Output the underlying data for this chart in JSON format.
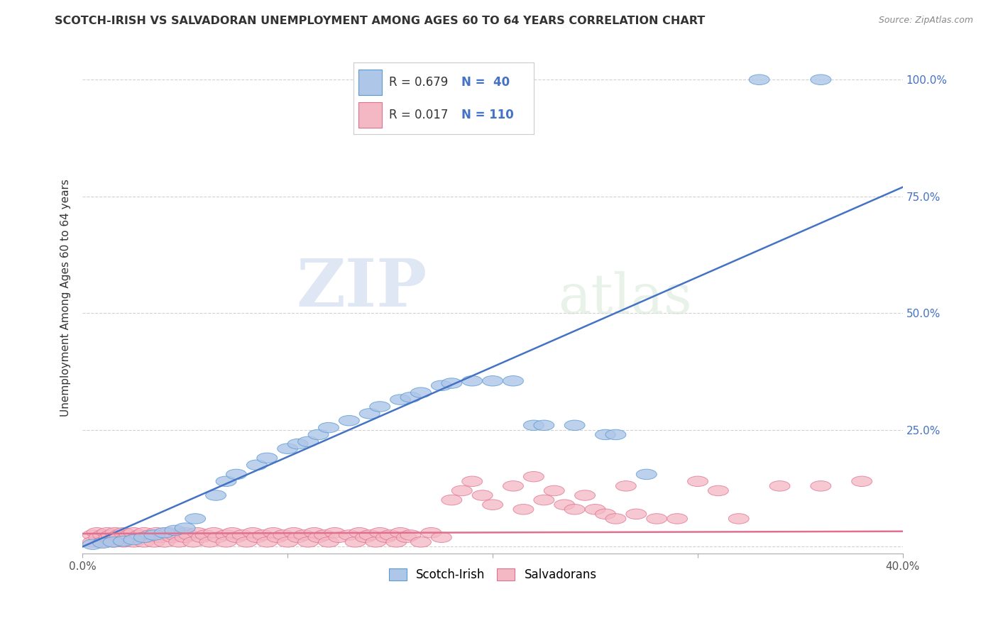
{
  "title": "SCOTCH-IRISH VS SALVADORAN UNEMPLOYMENT AMONG AGES 60 TO 64 YEARS CORRELATION CHART",
  "source": "Source: ZipAtlas.com",
  "ylabel": "Unemployment Among Ages 60 to 64 years",
  "xlim": [
    0.0,
    0.4
  ],
  "ylim": [
    -0.015,
    1.08
  ],
  "blue_color": "#AEC6E8",
  "blue_edge_color": "#5B9BD5",
  "pink_color": "#F4B8C4",
  "pink_edge_color": "#E07090",
  "blue_line_color": "#4472C4",
  "pink_line_color": "#E07090",
  "blue_R": 0.679,
  "blue_N": 40,
  "pink_R": 0.017,
  "pink_N": 110,
  "blue_line_x0": 0.0,
  "blue_line_y0": 0.0,
  "blue_line_x1": 0.4,
  "blue_line_y1": 0.77,
  "pink_line_x0": 0.0,
  "pink_line_y0": 0.028,
  "pink_line_x1": 0.4,
  "pink_line_y1": 0.033,
  "blue_scatter_x": [
    0.005,
    0.01,
    0.015,
    0.02,
    0.025,
    0.03,
    0.035,
    0.04,
    0.045,
    0.05,
    0.055,
    0.065,
    0.07,
    0.075,
    0.085,
    0.09,
    0.1,
    0.105,
    0.11,
    0.115,
    0.12,
    0.13,
    0.14,
    0.145,
    0.155,
    0.16,
    0.165,
    0.175,
    0.18,
    0.19,
    0.2,
    0.21,
    0.22,
    0.225,
    0.24,
    0.255,
    0.26,
    0.275,
    0.33,
    0.36
  ],
  "blue_scatter_y": [
    0.005,
    0.008,
    0.01,
    0.012,
    0.015,
    0.02,
    0.025,
    0.03,
    0.035,
    0.04,
    0.06,
    0.11,
    0.14,
    0.155,
    0.175,
    0.19,
    0.21,
    0.22,
    0.225,
    0.24,
    0.255,
    0.27,
    0.285,
    0.3,
    0.315,
    0.32,
    0.33,
    0.345,
    0.35,
    0.355,
    0.355,
    0.355,
    0.26,
    0.26,
    0.26,
    0.24,
    0.24,
    0.155,
    1.0,
    1.0
  ],
  "pink_scatter_x": [
    0.005,
    0.005,
    0.007,
    0.008,
    0.01,
    0.01,
    0.012,
    0.013,
    0.014,
    0.015,
    0.016,
    0.017,
    0.018,
    0.02,
    0.02,
    0.022,
    0.023,
    0.025,
    0.025,
    0.027,
    0.028,
    0.03,
    0.03,
    0.032,
    0.033,
    0.035,
    0.036,
    0.038,
    0.04,
    0.04,
    0.042,
    0.044,
    0.045,
    0.047,
    0.05,
    0.05,
    0.052,
    0.054,
    0.056,
    0.058,
    0.06,
    0.062,
    0.064,
    0.066,
    0.07,
    0.07,
    0.073,
    0.075,
    0.078,
    0.08,
    0.083,
    0.085,
    0.088,
    0.09,
    0.093,
    0.095,
    0.098,
    0.1,
    0.103,
    0.105,
    0.108,
    0.11,
    0.113,
    0.115,
    0.118,
    0.12,
    0.123,
    0.125,
    0.13,
    0.133,
    0.135,
    0.138,
    0.14,
    0.143,
    0.145,
    0.148,
    0.15,
    0.153,
    0.155,
    0.158,
    0.16,
    0.165,
    0.17,
    0.175,
    0.18,
    0.185,
    0.19,
    0.195,
    0.2,
    0.21,
    0.215,
    0.22,
    0.225,
    0.23,
    0.235,
    0.24,
    0.245,
    0.25,
    0.255,
    0.26,
    0.265,
    0.27,
    0.28,
    0.29,
    0.3,
    0.31,
    0.32,
    0.34,
    0.36,
    0.38
  ],
  "pink_scatter_y": [
    0.025,
    0.01,
    0.03,
    0.02,
    0.025,
    0.01,
    0.03,
    0.02,
    0.025,
    0.01,
    0.03,
    0.02,
    0.025,
    0.01,
    0.03,
    0.02,
    0.025,
    0.01,
    0.03,
    0.02,
    0.025,
    0.01,
    0.03,
    0.02,
    0.025,
    0.01,
    0.03,
    0.02,
    0.025,
    0.01,
    0.03,
    0.02,
    0.025,
    0.01,
    0.03,
    0.02,
    0.025,
    0.01,
    0.03,
    0.02,
    0.025,
    0.01,
    0.03,
    0.02,
    0.025,
    0.01,
    0.03,
    0.02,
    0.025,
    0.01,
    0.03,
    0.02,
    0.025,
    0.01,
    0.03,
    0.02,
    0.025,
    0.01,
    0.03,
    0.02,
    0.025,
    0.01,
    0.03,
    0.02,
    0.025,
    0.01,
    0.03,
    0.02,
    0.025,
    0.01,
    0.03,
    0.02,
    0.025,
    0.01,
    0.03,
    0.02,
    0.025,
    0.01,
    0.03,
    0.02,
    0.025,
    0.01,
    0.03,
    0.02,
    0.1,
    0.12,
    0.14,
    0.11,
    0.09,
    0.13,
    0.08,
    0.15,
    0.1,
    0.12,
    0.09,
    0.08,
    0.11,
    0.08,
    0.07,
    0.06,
    0.13,
    0.07,
    0.06,
    0.06,
    0.14,
    0.12,
    0.06,
    0.13,
    0.13,
    0.14
  ],
  "watermark_zip": "ZIP",
  "watermark_atlas": "atlas",
  "background_color": "#ffffff",
  "grid_color": "#cccccc",
  "right_tick_color": "#4472C4",
  "tick_label_color": "#555555"
}
